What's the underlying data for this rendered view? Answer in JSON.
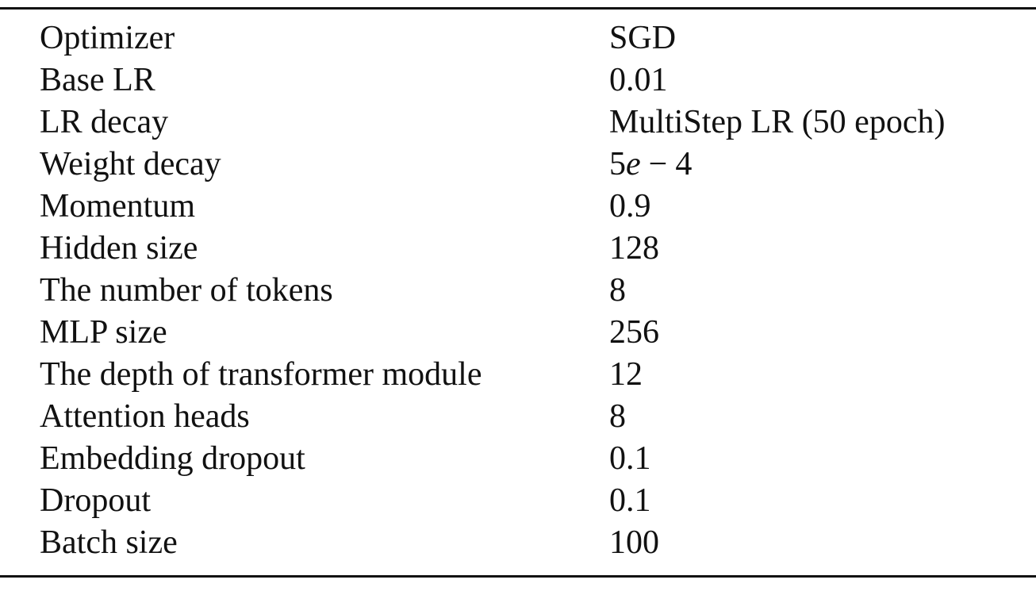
{
  "table": {
    "rows": [
      {
        "label": "Optimizer",
        "value": "SGD"
      },
      {
        "label": "Base LR",
        "value": "0.01"
      },
      {
        "label": "LR decay",
        "value": "MultiStep LR (50 epoch)"
      },
      {
        "label": "Weight decay",
        "value_math": {
          "mantissa": "5",
          "symbol": "e",
          "operator": "−",
          "exponent": "4"
        }
      },
      {
        "label": "Momentum",
        "value": "0.9"
      },
      {
        "label": "Hidden size",
        "value": "128"
      },
      {
        "label": "The number of tokens",
        "value": "8"
      },
      {
        "label": "MLP size",
        "value": "256"
      },
      {
        "label": "The depth of transformer module",
        "value": "12"
      },
      {
        "label": "Attention heads",
        "value": "8"
      },
      {
        "label": "Embedding dropout",
        "value": "0.1"
      },
      {
        "label": "Dropout",
        "value": "0.1"
      },
      {
        "label": "Batch size",
        "value": "100"
      }
    ]
  }
}
